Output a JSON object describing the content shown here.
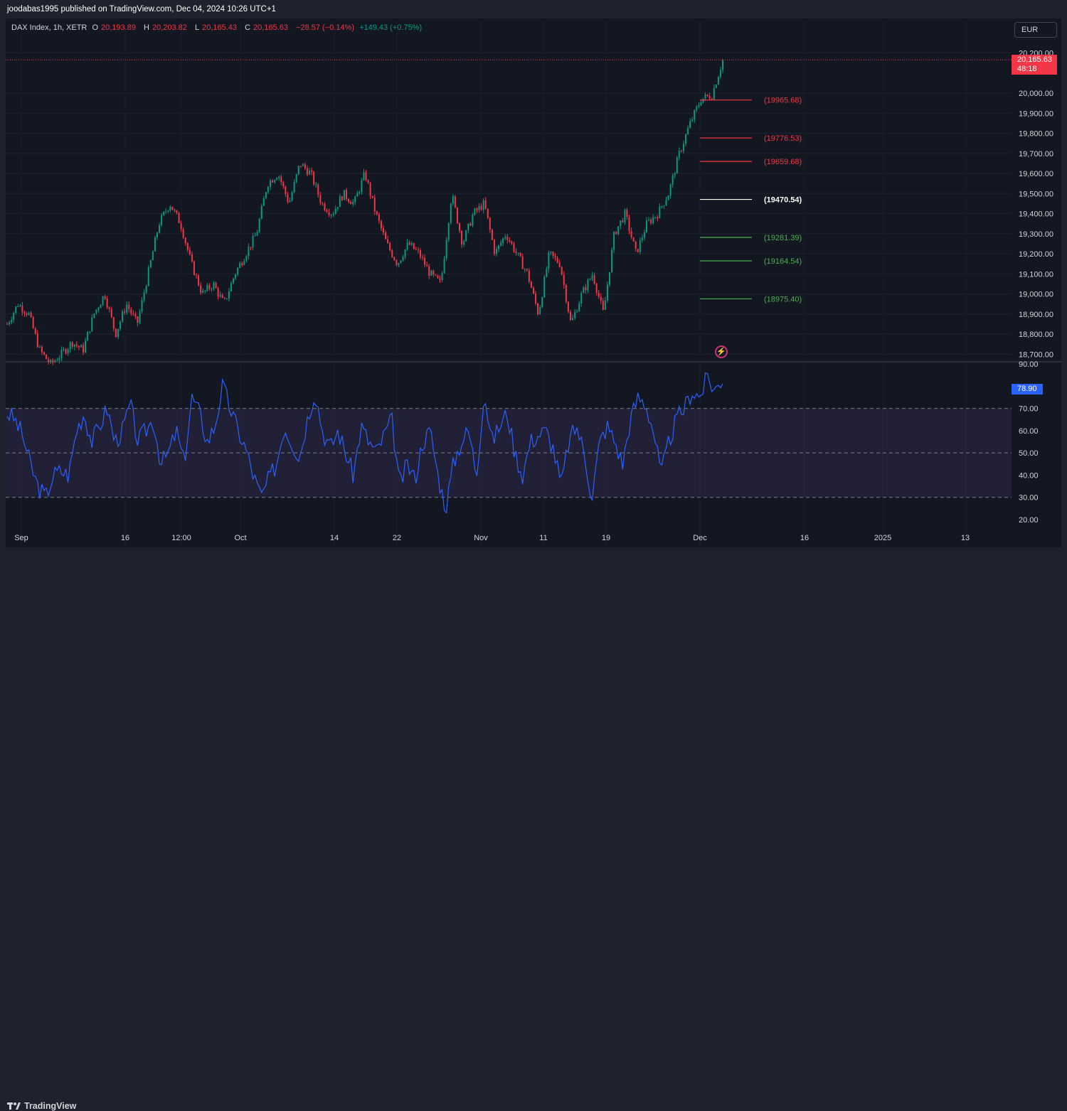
{
  "header": {
    "publisher": "joodabas1995 published on TradingView.com, Dec 04, 2024 10:26 UTC+1"
  },
  "legend": {
    "symbol": "DAX Index, 1h, XETR",
    "open_label": "O",
    "open": "20,193.89",
    "high_label": "H",
    "high": "20,203.82",
    "low_label": "L",
    "low": "20,165.43",
    "close_label": "C",
    "close": "20,165.63",
    "change": "−28.57 (−0.14%)",
    "extra_change": "+149.43 (+0.75%)"
  },
  "currency_button": "EUR",
  "last_price": {
    "value": "20,165.63",
    "countdown": "48:18"
  },
  "rsi_value": "78.90",
  "footer": {
    "brand": "TradingView"
  },
  "colors": {
    "background": "#131722",
    "up": "#089981",
    "down": "#f23645",
    "rsi_line": "#2962ff",
    "rsi_band": "#2a2540"
  },
  "chart_data": [
    {
      "type": "candlestick",
      "symbol": "DAX Index",
      "timeframe": "1h",
      "ylim": [
        18650,
        20250
      ],
      "y_ticks": [
        "20,200.00",
        "20,000.00",
        "19,900.00",
        "19,800.00",
        "19,700.00",
        "19,600.00",
        "19,500.00",
        "19,400.00",
        "19,300.00",
        "19,200.00",
        "19,100.00",
        "19,000.00",
        "18,900.00",
        "18,800.00",
        "18,700.00"
      ],
      "y_tick_values": [
        20200,
        20000,
        19900,
        19800,
        19700,
        19600,
        19500,
        19400,
        19300,
        19200,
        19100,
        19000,
        18900,
        18800,
        18700
      ],
      "x_labels": [
        "Sep",
        "16",
        "12:00",
        "Oct",
        "14",
        "22",
        "Nov",
        "11",
        "19",
        "Dec",
        "16",
        "2025",
        "13"
      ],
      "close_anchors": [
        18850,
        18950,
        18900,
        18720,
        18650,
        18700,
        18760,
        18720,
        18900,
        19000,
        18800,
        18950,
        18850,
        19100,
        19350,
        19450,
        19350,
        19150,
        19000,
        19050,
        18950,
        19100,
        19200,
        19300,
        19550,
        19600,
        19450,
        19650,
        19600,
        19450,
        19400,
        19500,
        19450,
        19600,
        19400,
        19250,
        19150,
        19250,
        19200,
        19100,
        19050,
        19500,
        19250,
        19400,
        19450,
        19200,
        19300,
        19200,
        19100,
        18900,
        19200,
        19150,
        18850,
        19000,
        19100,
        18900,
        19300,
        19400,
        19200,
        19350,
        19400,
        19500,
        19700,
        19850,
        19970,
        19990,
        20165
      ],
      "current_price": 20165.63,
      "current_price_label": "20,165.63",
      "levels": [
        {
          "value": 19965.68,
          "label": "(19965.68)",
          "color": "#f23645"
        },
        {
          "value": 19776.53,
          "label": "(19776.53)",
          "color": "#f23645"
        },
        {
          "value": 19659.68,
          "label": "(19659.68)",
          "color": "#f23645"
        },
        {
          "value": 19470.54,
          "label": "(19470.54)",
          "color": "#ffffff"
        },
        {
          "value": 19281.39,
          "label": "(19281.39)",
          "color": "#4caf50"
        },
        {
          "value": 19164.54,
          "label": "(19164.54)",
          "color": "#4caf50"
        },
        {
          "value": 18975.4,
          "label": "(18975.40)",
          "color": "#4caf50"
        }
      ]
    },
    {
      "type": "line",
      "name": "RSI",
      "ylim": [
        20,
        90
      ],
      "y_ticks": [
        "90.00",
        "80.00",
        "70.00",
        "60.00",
        "50.00",
        "40.00",
        "30.00",
        "20.00"
      ],
      "y_tick_values": [
        90,
        80,
        70,
        60,
        50,
        40,
        30,
        20
      ],
      "bands": {
        "upper": 70,
        "middle": 50,
        "lower": 30
      },
      "anchors": [
        68,
        65,
        58,
        45,
        35,
        30,
        40,
        42,
        40,
        60,
        68,
        55,
        62,
        70,
        55,
        60,
        72,
        55,
        60,
        65,
        45,
        50,
        60,
        45,
        75,
        68,
        55,
        62,
        80,
        70,
        60,
        52,
        40,
        30,
        38,
        45,
        62,
        55,
        48,
        65,
        78,
        60,
        52,
        60,
        50,
        40,
        62,
        55,
        50,
        58,
        65,
        35,
        45,
        38,
        55,
        60,
        40,
        25,
        45,
        55,
        60,
        40,
        78,
        55,
        62,
        68,
        50,
        40,
        55,
        58,
        60,
        52,
        35,
        55,
        62,
        50,
        30,
        55,
        62,
        55,
        45,
        65,
        75,
        72,
        60,
        40,
        55,
        65,
        70,
        78,
        75,
        84,
        78,
        84
      ],
      "last_value": 78.9
    }
  ]
}
